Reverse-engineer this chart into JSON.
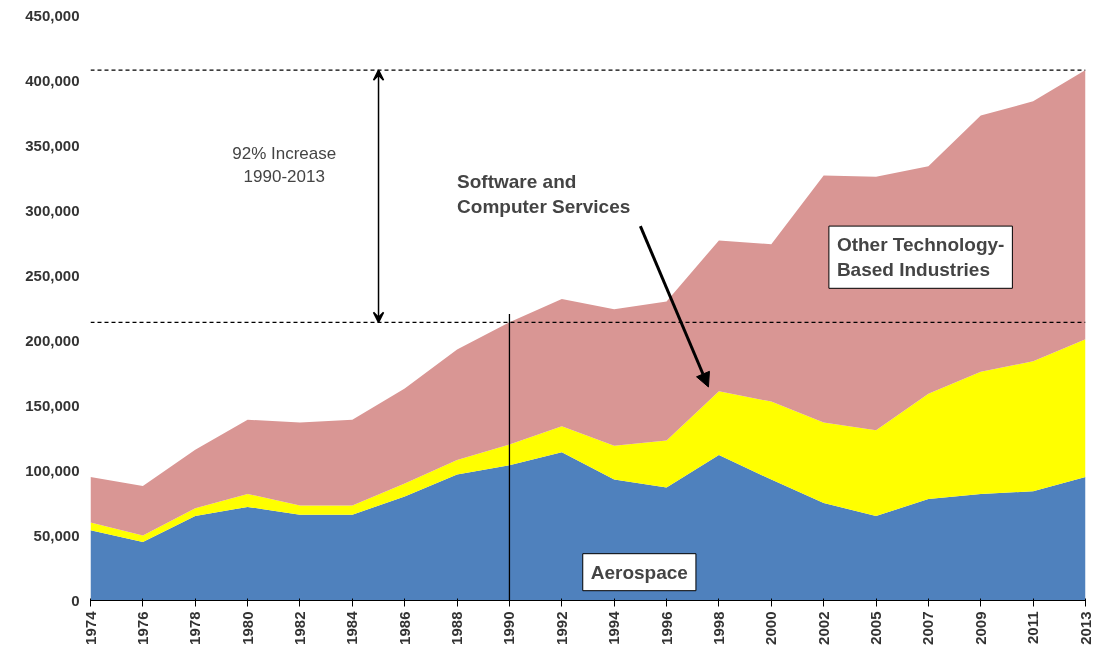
{
  "chart_data": {
    "type": "area",
    "stacked": true,
    "categories": [
      "1974",
      "1976",
      "1978",
      "1980",
      "1982",
      "1984",
      "1986",
      "1988",
      "1990",
      "1992",
      "1994",
      "1996",
      "1998",
      "2000",
      "2002",
      "2005",
      "2007",
      "2009",
      "2011",
      "2013"
    ],
    "series": [
      {
        "name": "Aerospace",
        "color": "#4f81bd",
        "values": [
          54000,
          45000,
          65000,
          72000,
          66000,
          66000,
          80000,
          97000,
          104000,
          114000,
          93000,
          87000,
          112000,
          93000,
          75000,
          65000,
          78000,
          82000,
          84000,
          95000
        ]
      },
      {
        "name": "Software and Computer Services",
        "color": "#ffff00",
        "values": [
          6000,
          5000,
          6000,
          10000,
          7000,
          7000,
          10000,
          11000,
          16000,
          20000,
          26000,
          36000,
          49000,
          60000,
          62000,
          66000,
          81000,
          94000,
          100000,
          106000
        ]
      },
      {
        "name": "Other Technology-Based Industries",
        "color": "#d99694",
        "values": [
          35000,
          38000,
          45000,
          57000,
          64000,
          66000,
          73000,
          85000,
          94000,
          98000,
          105000,
          107000,
          116000,
          121000,
          190000,
          195000,
          175000,
          197000,
          200000,
          207000
        ]
      }
    ],
    "ylim": [
      0,
      450000
    ],
    "yticks": [
      {
        "value": 0,
        "label": "0"
      },
      {
        "value": 50000,
        "label": "50,000"
      },
      {
        "value": 100000,
        "label": "100,000"
      },
      {
        "value": 150000,
        "label": "150,000"
      },
      {
        "value": 200000,
        "label": "200,000"
      },
      {
        "value": 250000,
        "label": "250,000"
      },
      {
        "value": 300000,
        "label": "300,000"
      },
      {
        "value": 350000,
        "label": "350,000"
      },
      {
        "value": 400000,
        "label": "400,000"
      },
      {
        "value": 450000,
        "label": "450,000"
      }
    ],
    "ref_lines": [
      {
        "axis": "y",
        "value": 214000,
        "color": "#000000",
        "line_style": "dashed"
      },
      {
        "axis": "y",
        "value": 408000,
        "color": "#000000",
        "line_style": "dashed"
      },
      {
        "axis": "x",
        "value": "1990",
        "color": "#000000",
        "line_style": "solid"
      }
    ],
    "annotations": [
      "92% Increase\n1990-2013"
    ],
    "grid": false
  }
}
